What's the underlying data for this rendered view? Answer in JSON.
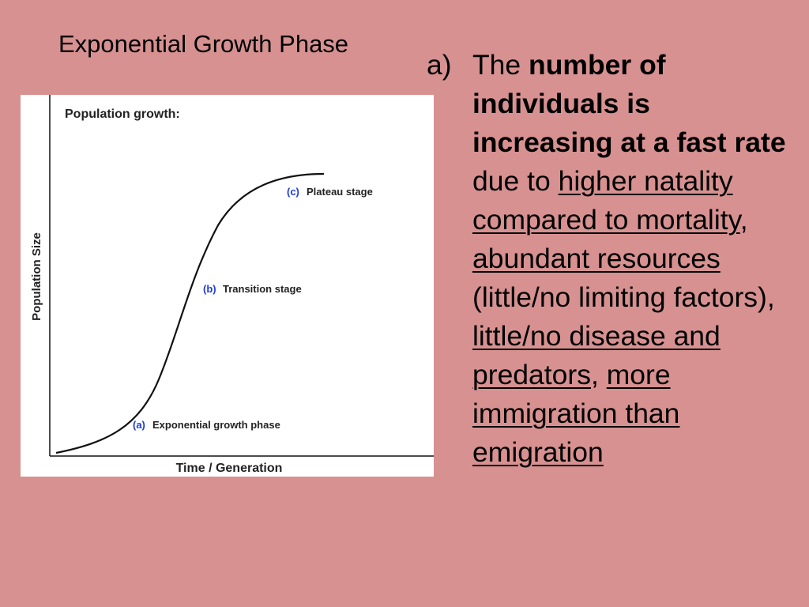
{
  "slide": {
    "title": "Exponential Growth Phase",
    "background_color": "#d79191"
  },
  "figure": {
    "title": "Population growth:",
    "y_axis_label": "Population Size",
    "x_axis_label": "Time / Generation",
    "curve_type": "sigmoid",
    "stages": [
      {
        "letter": "(a)",
        "text": "Exponential growth phase"
      },
      {
        "letter": "(b)",
        "text": "Transition stage"
      },
      {
        "letter": "(c)",
        "text": "Plateau stage"
      }
    ],
    "label_color": "#1d3cd8"
  },
  "point": {
    "marker": "a)",
    "parts": {
      "p1": "The ",
      "p2": "number of individuals is increasing at a fast rate",
      "p3": " due to ",
      "p4": "higher natality compared to mortality",
      "p5": ", ",
      "p6": "abundant resources",
      "p7": " (little/no limiting factors), ",
      "p8": "little/no disease and predators",
      "p9": ", ",
      "p10": "more immigration than emigration"
    }
  }
}
